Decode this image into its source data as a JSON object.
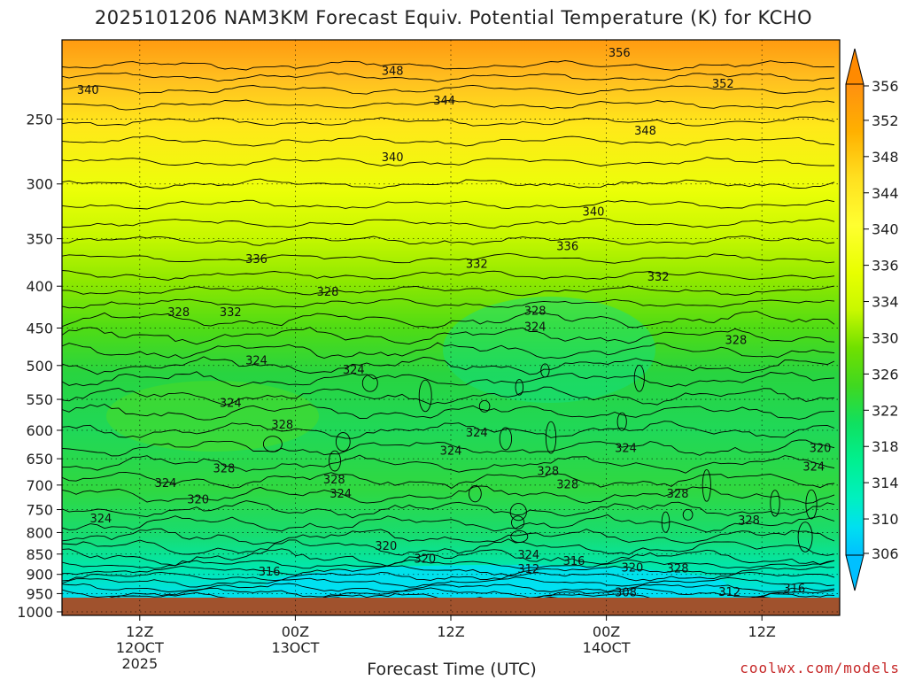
{
  "title": "2025101206 NAM3KM Forecast Equiv. Potential Temperature (K) for KCHO",
  "xaxis_label": "Forecast Time (UTC)",
  "credit": "coolwx.com/models",
  "colors": {
    "ground": "#a0522d",
    "contour_line": "#000000",
    "scale": [
      "#00c0ff",
      "#00e0f0",
      "#00f0c0",
      "#00f090",
      "#10e060",
      "#40d820",
      "#70e000",
      "#a0f000",
      "#c8f800",
      "#e8ff00",
      "#ffff30",
      "#ffe020",
      "#ffb000",
      "#ff9010"
    ]
  },
  "chart_data": {
    "type": "heatmap",
    "title": "2025101206 NAM3KM Forecast Equiv. Potential Temperature (K) for KCHO",
    "xlabel": "Forecast Time (UTC)",
    "ylabel": "",
    "x_ticks": [
      {
        "label": "12Z",
        "sub": "12OCT",
        "sub2": "2025",
        "hour": 6
      },
      {
        "label": "00Z",
        "sub": "13OCT",
        "sub2": "",
        "hour": 18
      },
      {
        "label": "12Z",
        "sub": "",
        "sub2": "",
        "hour": 30
      },
      {
        "label": "00Z",
        "sub": "14OCT",
        "sub2": "",
        "hour": 42
      },
      {
        "label": "12Z",
        "sub": "",
        "sub2": "",
        "hour": 54
      }
    ],
    "xlim_hours": [
      0,
      60
    ],
    "y_ticks": [
      1000,
      950,
      900,
      850,
      800,
      750,
      700,
      650,
      600,
      550,
      500,
      450,
      400,
      350,
      300,
      250
    ],
    "ylim_hpa": [
      1010,
      200
    ],
    "y_scale": "log",
    "colorbar": {
      "ticks": [
        306,
        310,
        314,
        318,
        322,
        326,
        330,
        334,
        336,
        340,
        344,
        348,
        352,
        356
      ],
      "orientation": "vertical",
      "placement": "right"
    },
    "contour_labels": [
      {
        "value": 356,
        "hour": 43,
        "hpa": 207
      },
      {
        "value": 348,
        "hour": 25.5,
        "hpa": 218
      },
      {
        "value": 352,
        "hour": 51,
        "hpa": 226
      },
      {
        "value": 340,
        "hour": 2,
        "hpa": 230
      },
      {
        "value": 344,
        "hour": 29.5,
        "hpa": 237
      },
      {
        "value": 348,
        "hour": 45,
        "hpa": 258
      },
      {
        "value": 340,
        "hour": 25.5,
        "hpa": 278
      },
      {
        "value": 340,
        "hour": 41,
        "hpa": 324
      },
      {
        "value": 336,
        "hour": 39,
        "hpa": 357
      },
      {
        "value": 336,
        "hour": 15,
        "hpa": 370
      },
      {
        "value": 332,
        "hour": 32,
        "hpa": 375
      },
      {
        "value": 332,
        "hour": 46,
        "hpa": 389
      },
      {
        "value": 328,
        "hour": 20.5,
        "hpa": 406
      },
      {
        "value": 328,
        "hour": 9,
        "hpa": 430
      },
      {
        "value": 332,
        "hour": 13,
        "hpa": 430
      },
      {
        "value": 328,
        "hour": 36.5,
        "hpa": 428
      },
      {
        "value": 324,
        "hour": 36.5,
        "hpa": 448
      },
      {
        "value": 328,
        "hour": 52,
        "hpa": 465
      },
      {
        "value": 324,
        "hour": 15,
        "hpa": 492
      },
      {
        "value": 324,
        "hour": 22.5,
        "hpa": 505
      },
      {
        "value": 324,
        "hour": 13,
        "hpa": 555
      },
      {
        "value": 328,
        "hour": 17,
        "hpa": 590
      },
      {
        "value": 324,
        "hour": 32,
        "hpa": 603
      },
      {
        "value": 324,
        "hour": 30,
        "hpa": 635
      },
      {
        "value": 324,
        "hour": 43.5,
        "hpa": 630
      },
      {
        "value": 320,
        "hour": 58.5,
        "hpa": 630
      },
      {
        "value": 328,
        "hour": 12.5,
        "hpa": 667
      },
      {
        "value": 328,
        "hour": 37.5,
        "hpa": 672
      },
      {
        "value": 324,
        "hour": 58,
        "hpa": 664
      },
      {
        "value": 324,
        "hour": 8,
        "hpa": 695
      },
      {
        "value": 328,
        "hour": 21,
        "hpa": 688
      },
      {
        "value": 328,
        "hour": 39,
        "hpa": 698
      },
      {
        "value": 320,
        "hour": 10.5,
        "hpa": 728
      },
      {
        "value": 324,
        "hour": 21.5,
        "hpa": 716
      },
      {
        "value": 328,
        "hour": 47.5,
        "hpa": 716
      },
      {
        "value": 324,
        "hour": 3,
        "hpa": 768
      },
      {
        "value": 328,
        "hour": 53,
        "hpa": 772
      },
      {
        "value": 320,
        "hour": 25,
        "hpa": 830
      },
      {
        "value": 320,
        "hour": 28,
        "hpa": 860
      },
      {
        "value": 324,
        "hour": 36,
        "hpa": 850
      },
      {
        "value": 316,
        "hour": 39.5,
        "hpa": 865
      },
      {
        "value": 312,
        "hour": 36,
        "hpa": 885
      },
      {
        "value": 320,
        "hour": 44,
        "hpa": 882
      },
      {
        "value": 328,
        "hour": 47.5,
        "hpa": 884
      },
      {
        "value": 316,
        "hour": 16,
        "hpa": 892
      },
      {
        "value": 308,
        "hour": 43.5,
        "hpa": 946
      },
      {
        "value": 312,
        "hour": 51.5,
        "hpa": 944
      },
      {
        "value": 316,
        "hour": 56.5,
        "hpa": 935
      }
    ]
  }
}
